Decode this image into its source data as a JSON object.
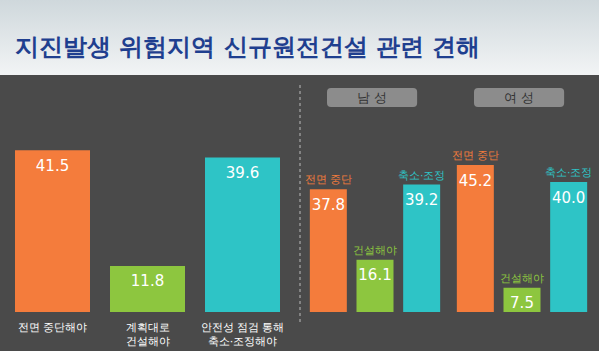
{
  "chart_data": [
    {
      "type": "bar",
      "title": "지진발생 위험지역 신규원전건설 관련 견해",
      "categories": [
        "전면 중단해야",
        "계획대로\n건설해야",
        "안전성 점검 통해\n축소·조정해야"
      ],
      "values": [
        41.5,
        11.8,
        39.6
      ],
      "colors": [
        "#f47c3c",
        "#8dc63f",
        "#2ec4c6"
      ],
      "ylim": [
        0,
        50
      ],
      "grid": false,
      "tick_labels": "x",
      "data_labels": true
    },
    {
      "type": "bar",
      "title": "남 성",
      "categories": [
        "전면 중단",
        "건설해야",
        "축소·조정"
      ],
      "values": [
        37.8,
        16.1,
        39.2
      ],
      "colors": [
        "#f47c3c",
        "#8dc63f",
        "#2ec4c6"
      ],
      "ylim": [
        0,
        60
      ],
      "grid": false,
      "tick_labels": false,
      "data_labels": true
    },
    {
      "type": "bar",
      "title": "여 성",
      "categories": [
        "전면 중단",
        "건설해야",
        "축소·조정"
      ],
      "values": [
        45.2,
        7.5,
        40
      ],
      "value_labels": [
        "45.2",
        "7.5",
        "40.0"
      ],
      "colors": [
        "#f47c3c",
        "#8dc63f",
        "#2ec4c6"
      ],
      "ylim": [
        0,
        60
      ],
      "grid": false,
      "tick_labels": false,
      "data_labels": true
    }
  ]
}
